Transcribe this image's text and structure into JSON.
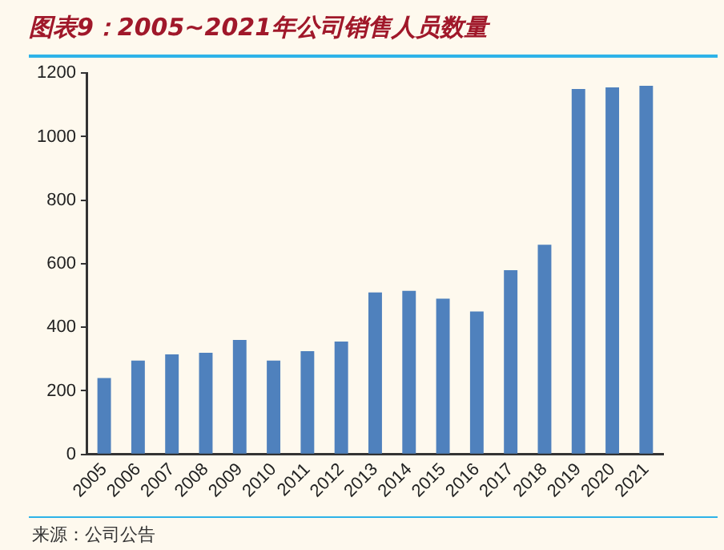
{
  "chart_data": {
    "type": "bar",
    "title": "图表9：2005~2021年公司销售人员数量",
    "categories": [
      "2005",
      "2006",
      "2007",
      "2008",
      "2009",
      "2010",
      "2011",
      "2012",
      "2013",
      "2014",
      "2015",
      "2016",
      "2017",
      "2018",
      "2019",
      "2020",
      "2021"
    ],
    "values": [
      240,
      295,
      315,
      320,
      360,
      295,
      325,
      355,
      510,
      515,
      490,
      450,
      580,
      660,
      1150,
      1155,
      1160
    ],
    "color": "#4f81bd",
    "ylim": [
      0,
      1200
    ],
    "yticks": [
      0,
      200,
      400,
      600,
      800,
      1000,
      1200
    ],
    "grid": false,
    "legend": false,
    "annotations": [
      "来源：公司公告"
    ]
  }
}
